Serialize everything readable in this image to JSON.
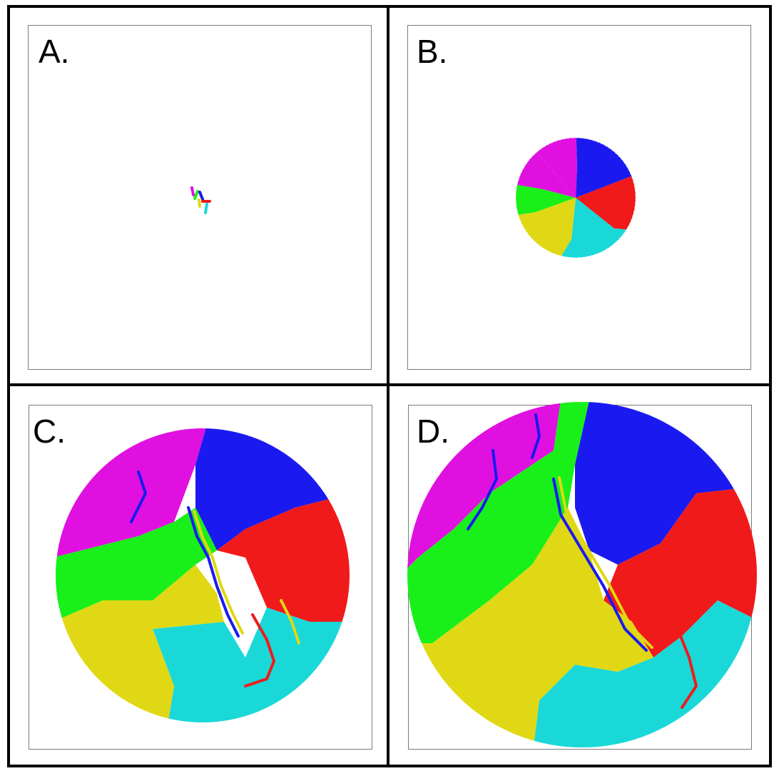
{
  "panels": [
    {
      "label": "A."
    },
    {
      "label": "B."
    },
    {
      "label": "C."
    },
    {
      "label": "D."
    }
  ],
  "colors": {
    "magenta": "#e010e0",
    "blue": "#1a1af0",
    "red": "#f01a1a",
    "cyan": "#1ad8d8",
    "yellow": "#e0d814",
    "green": "#19f019"
  }
}
